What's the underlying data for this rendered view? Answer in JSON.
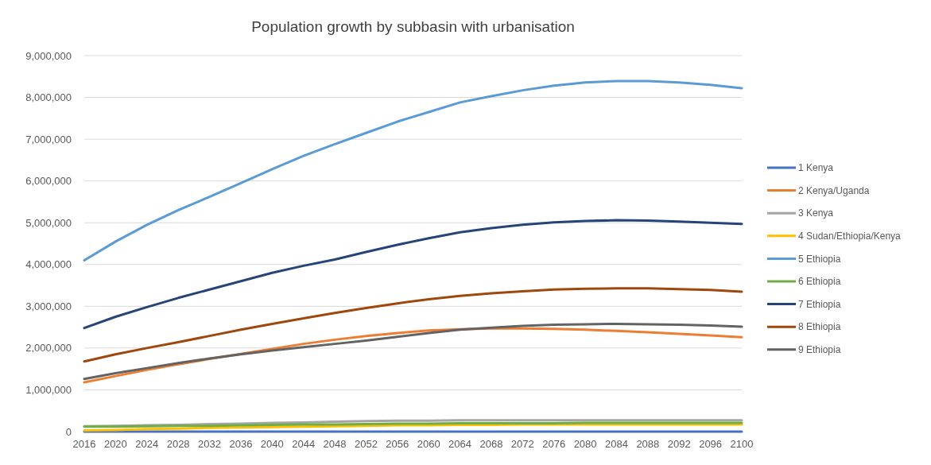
{
  "chart_data": {
    "type": "line",
    "title": "Population growth by subbasin with urbanisation",
    "x": [
      2016,
      2020,
      2024,
      2028,
      2032,
      2036,
      2040,
      2044,
      2048,
      2052,
      2056,
      2060,
      2064,
      2068,
      2072,
      2076,
      2080,
      2084,
      2088,
      2092,
      2096,
      2100
    ],
    "xlim": [
      2016,
      2100
    ],
    "xticks": [
      2016,
      2020,
      2024,
      2028,
      2032,
      2036,
      2040,
      2044,
      2048,
      2052,
      2056,
      2060,
      2064,
      2068,
      2072,
      2076,
      2080,
      2084,
      2088,
      2092,
      2096,
      2100
    ],
    "ylim": [
      0,
      9000000
    ],
    "yticks": [
      {
        "value": 0,
        "label": "0"
      },
      {
        "value": 1000000,
        "label": "1,000,000"
      },
      {
        "value": 2000000,
        "label": "2,000,000"
      },
      {
        "value": 3000000,
        "label": "3,000,000"
      },
      {
        "value": 4000000,
        "label": "4,000,000"
      },
      {
        "value": 5000000,
        "label": "5,000,000"
      },
      {
        "value": 6000000,
        "label": "6,000,000"
      },
      {
        "value": 7000000,
        "label": "7,000,000"
      },
      {
        "value": 8000000,
        "label": "8,000,000"
      },
      {
        "value": 9000000,
        "label": "9,000,000"
      }
    ],
    "grid": "y",
    "legend": "right",
    "line_style": "solid",
    "series": [
      {
        "name": "1 Kenya",
        "color": "#4472c4",
        "values": [
          0,
          0,
          0,
          0,
          0,
          0,
          0,
          0,
          0,
          0,
          0,
          0,
          0,
          0,
          0,
          0,
          0,
          0,
          0,
          0,
          0,
          0
        ]
      },
      {
        "name": "2 Kenya/Uganda",
        "color": "#ed7d31",
        "values": [
          1180000,
          1330000,
          1480000,
          1610000,
          1740000,
          1860000,
          1980000,
          2100000,
          2200000,
          2290000,
          2360000,
          2420000,
          2450000,
          2470000,
          2470000,
          2460000,
          2440000,
          2410000,
          2380000,
          2340000,
          2300000,
          2260000
        ]
      },
      {
        "name": "3 Kenya",
        "color": "#a5a5a5",
        "values": [
          130000,
          140000,
          150000,
          160000,
          180000,
          190000,
          210000,
          220000,
          240000,
          250000,
          260000,
          260000,
          270000,
          270000,
          270000,
          270000,
          270000,
          270000,
          270000,
          270000,
          270000,
          270000
        ]
      },
      {
        "name": "4 Sudan/Ethiopia/Kenya",
        "color": "#ffc000",
        "values": [
          30000,
          40000,
          60000,
          70000,
          90000,
          100000,
          110000,
          120000,
          130000,
          140000,
          150000,
          150000,
          160000,
          160000,
          170000,
          170000,
          170000,
          170000,
          170000,
          170000,
          170000,
          170000
        ]
      },
      {
        "name": "5 Ethiopia",
        "color": "#5b9bd5",
        "values": [
          4100000,
          4550000,
          4950000,
          5300000,
          5620000,
          5950000,
          6280000,
          6600000,
          6880000,
          7150000,
          7420000,
          7650000,
          7880000,
          8030000,
          8170000,
          8280000,
          8360000,
          8390000,
          8390000,
          8360000,
          8300000,
          8220000
        ]
      },
      {
        "name": "6 Ethiopia",
        "color": "#70ad47",
        "values": [
          120000,
          120000,
          130000,
          140000,
          140000,
          150000,
          160000,
          170000,
          170000,
          180000,
          190000,
          190000,
          200000,
          200000,
          200000,
          200000,
          210000,
          210000,
          210000,
          210000,
          210000,
          210000
        ]
      },
      {
        "name": "7 Ethiopia",
        "color": "#264478",
        "values": [
          2480000,
          2750000,
          2980000,
          3200000,
          3400000,
          3600000,
          3800000,
          3970000,
          4120000,
          4300000,
          4470000,
          4630000,
          4770000,
          4870000,
          4950000,
          5010000,
          5040000,
          5060000,
          5050000,
          5030000,
          5000000,
          4970000
        ]
      },
      {
        "name": "8 Ethiopia",
        "color": "#9e480e",
        "values": [
          1680000,
          1850000,
          2000000,
          2140000,
          2290000,
          2440000,
          2580000,
          2710000,
          2840000,
          2960000,
          3070000,
          3170000,
          3250000,
          3310000,
          3360000,
          3400000,
          3420000,
          3430000,
          3430000,
          3410000,
          3390000,
          3350000
        ]
      },
      {
        "name": "9 Ethiopia",
        "color": "#636363",
        "values": [
          1260000,
          1400000,
          1520000,
          1640000,
          1750000,
          1850000,
          1940000,
          2020000,
          2100000,
          2180000,
          2270000,
          2360000,
          2440000,
          2490000,
          2530000,
          2560000,
          2570000,
          2580000,
          2570000,
          2560000,
          2540000,
          2510000
        ]
      }
    ]
  }
}
